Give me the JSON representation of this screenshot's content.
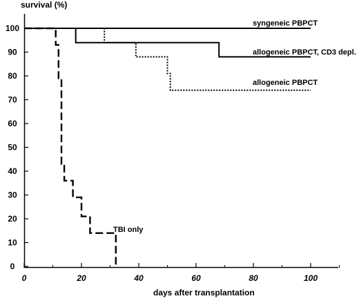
{
  "chart_data": {
    "type": "line",
    "subtype": "step (Kaplan-Meier survival curves)",
    "title": "",
    "ylabel": "survival (%)",
    "xlabel": "days after transplantation",
    "xlim": [
      0,
      110
    ],
    "ylim": [
      0,
      100
    ],
    "xticks": [
      0,
      20,
      40,
      60,
      80,
      100
    ],
    "yticks": [
      0,
      10,
      20,
      30,
      40,
      50,
      60,
      70,
      80,
      90,
      100
    ],
    "grid": false,
    "legend": "none (series labeled directly on plot)",
    "series": [
      {
        "name": "syngeneic PBPCT",
        "line_style": "solid",
        "x": [
          0,
          100
        ],
        "y": [
          100,
          100
        ]
      },
      {
        "name": "allogeneic PBPCT, CD3 depl.",
        "line_style": "solid",
        "x": [
          0,
          18,
          18,
          68,
          68,
          100
        ],
        "y": [
          100,
          100,
          94,
          94,
          88,
          88
        ]
      },
      {
        "name": "allogeneic PBPCT",
        "line_style": "dotted",
        "x": [
          0,
          28,
          28,
          39,
          39,
          50,
          50,
          51,
          51,
          100
        ],
        "y": [
          100,
          100,
          94,
          94,
          88,
          88,
          81,
          81,
          74,
          74
        ]
      },
      {
        "name": "TBI only",
        "line_style": "dashed",
        "x": [
          0,
          11,
          11,
          12,
          12,
          13,
          13,
          14,
          14,
          17,
          17,
          20,
          20,
          23,
          23,
          32,
          32
        ],
        "y": [
          100,
          100,
          93,
          93,
          79,
          79,
          43,
          43,
          36,
          36,
          29,
          29,
          21,
          21,
          14,
          14,
          0
        ]
      }
    ]
  }
}
